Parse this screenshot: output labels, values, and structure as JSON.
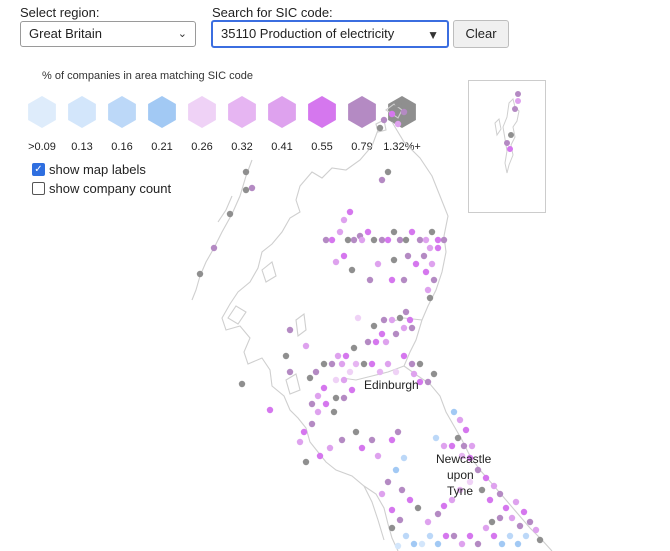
{
  "controls": {
    "region_label": "Select region:",
    "region_value": "Great Britain",
    "sic_label": "Search for SIC code:",
    "sic_value": "35110 Production of electricity",
    "clear_label": "Clear"
  },
  "legend": {
    "title": "% of companies in area matching SIC code",
    "items": [
      {
        "label": ">0.09",
        "color": "#deecfb"
      },
      {
        "label": "0.13",
        "color": "#d3e6fb"
      },
      {
        "label": "0.16",
        "color": "#bcd8f8"
      },
      {
        "label": "0.21",
        "color": "#a2c9f4"
      },
      {
        "label": "0.26",
        "color": "#efd2f6"
      },
      {
        "label": "0.32",
        "color": "#e6b5f2"
      },
      {
        "label": "0.41",
        "color": "#dea2ee"
      },
      {
        "label": "0.55",
        "color": "#d577ee"
      },
      {
        "label": "0.79",
        "color": "#b48ac3"
      },
      {
        "label": "1.32%+",
        "color": "#8f8f8f"
      }
    ]
  },
  "options": {
    "show_labels": {
      "label": "show map labels",
      "checked": true
    },
    "show_count": {
      "label": "show company count",
      "checked": false
    }
  },
  "map": {
    "labels": [
      "Edinburgh",
      "Newcastle",
      "upon",
      "Tyne"
    ]
  }
}
